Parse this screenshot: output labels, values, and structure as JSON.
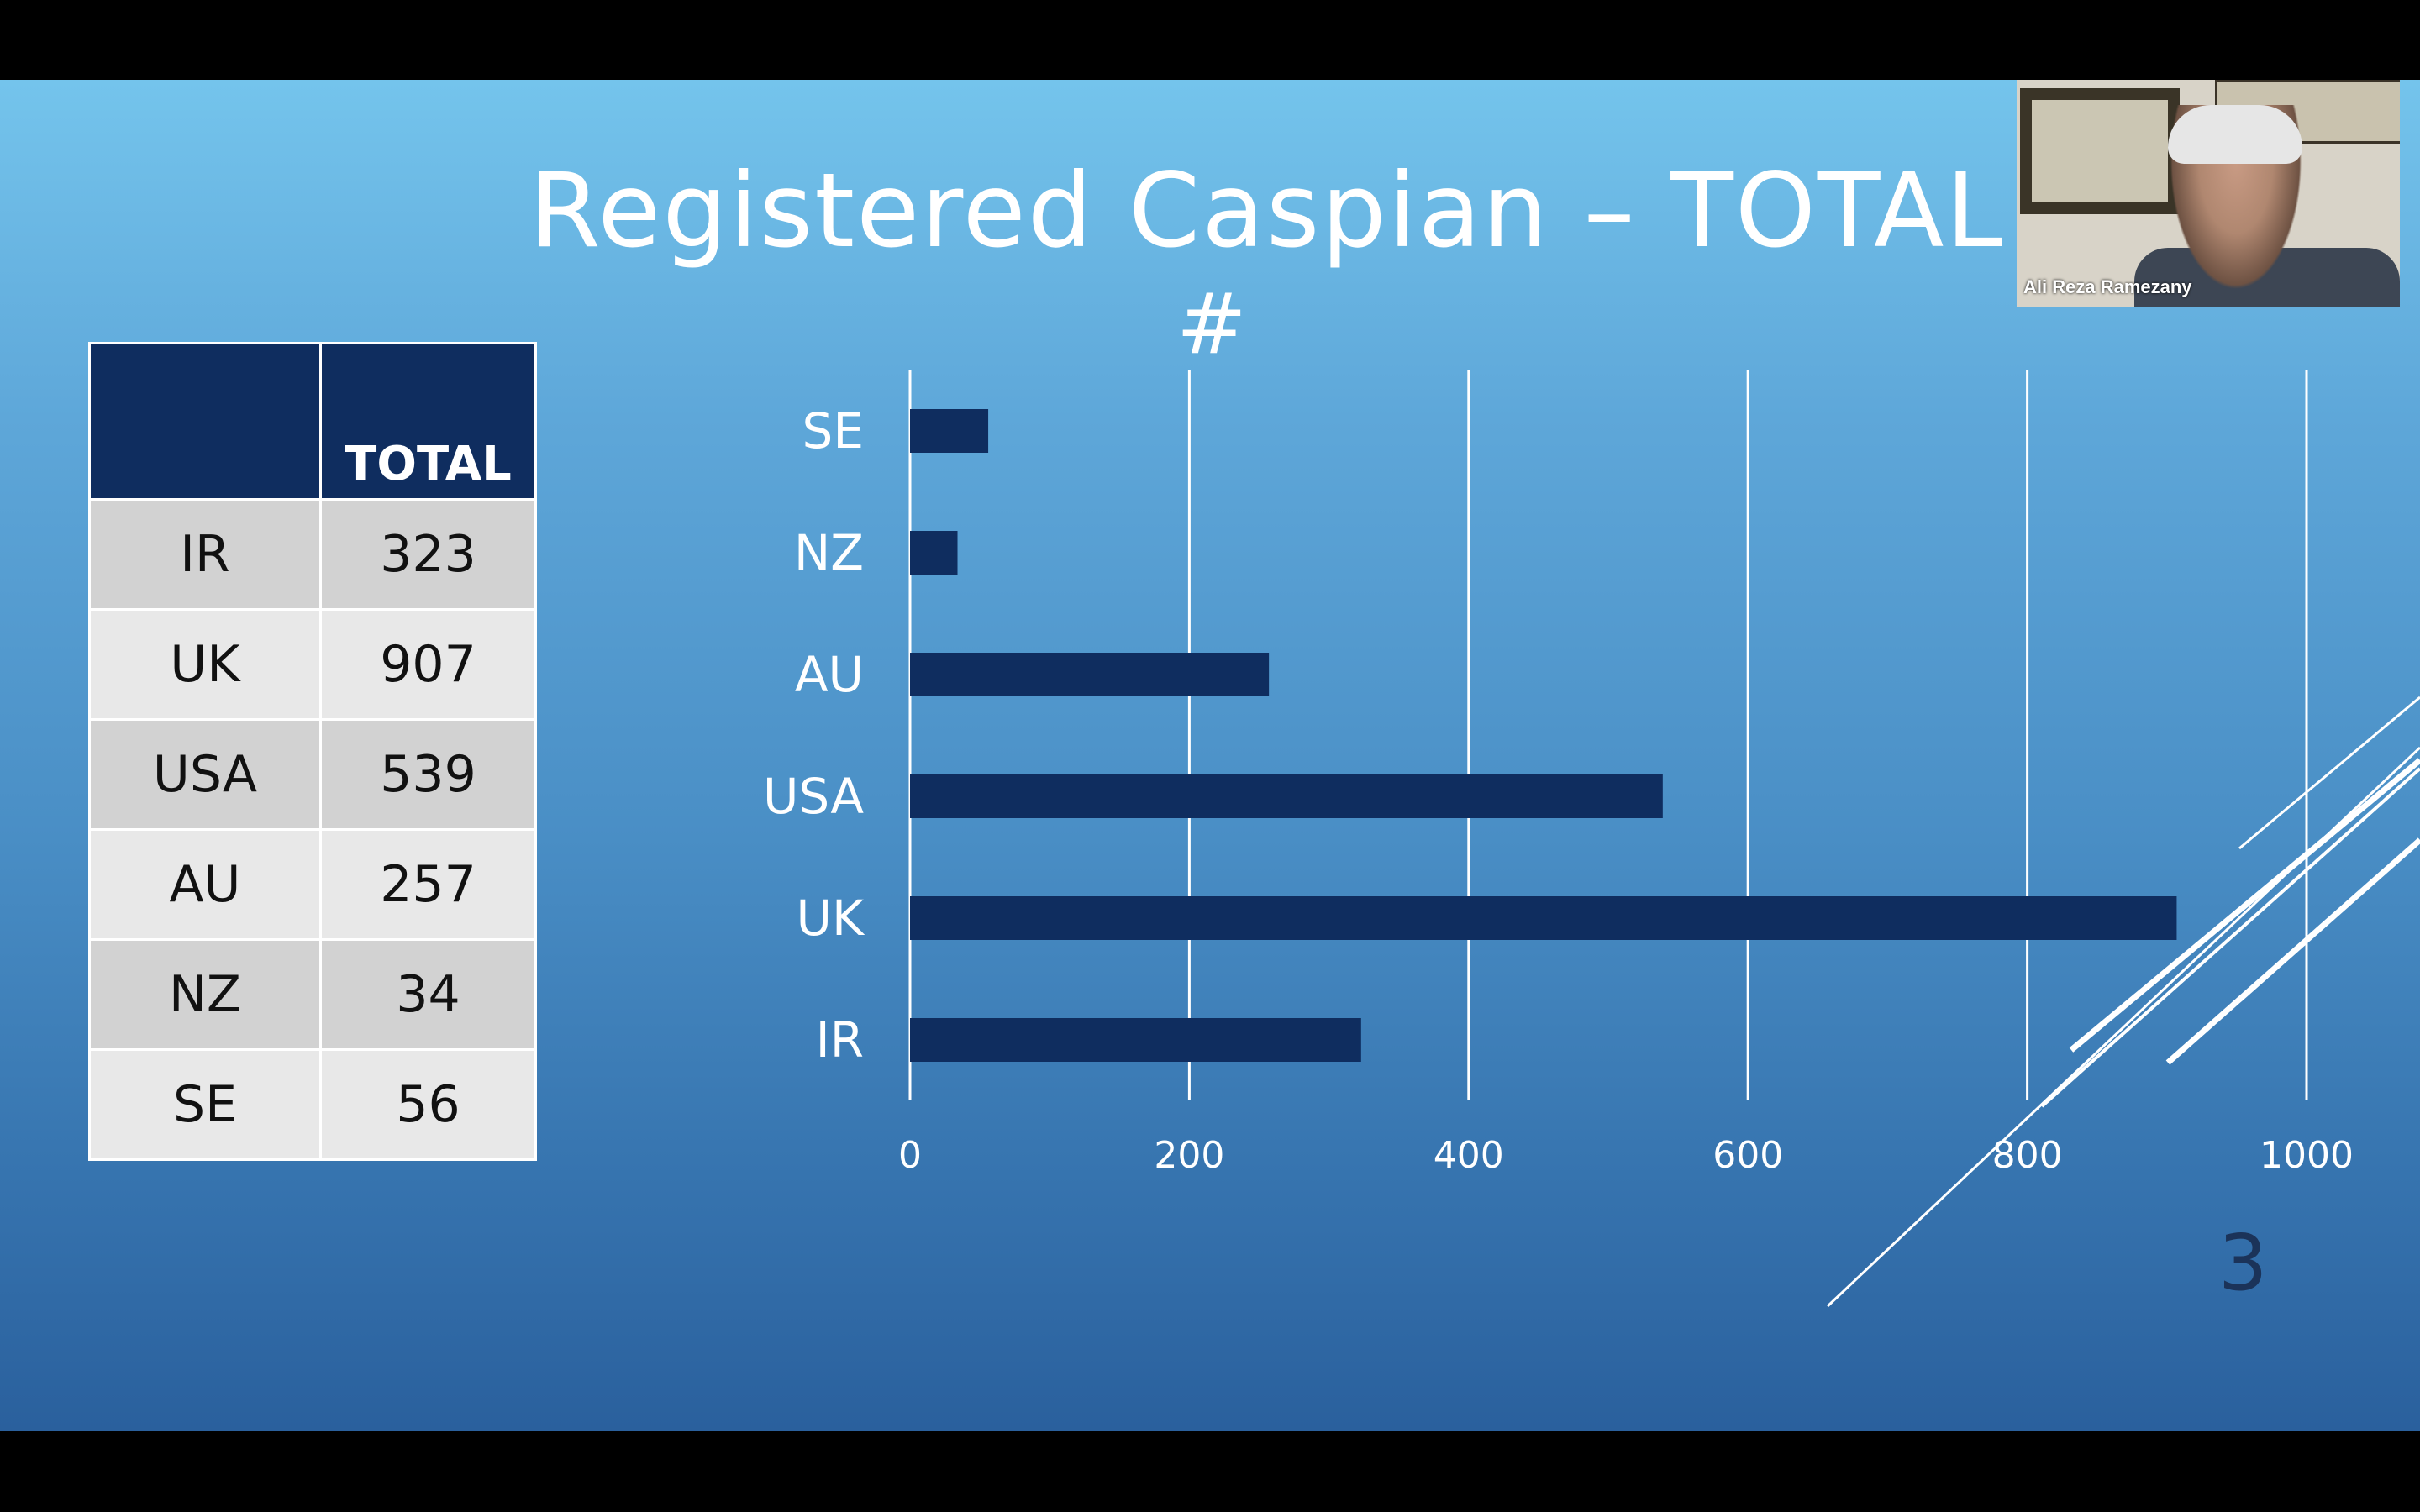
{
  "slide": {
    "title": "Registered Caspian  – TOTAL",
    "subtitle": "#",
    "page_number": "3"
  },
  "table": {
    "header": [
      "",
      "TOTAL"
    ],
    "rows": [
      {
        "country": "IR",
        "total": "323"
      },
      {
        "country": "UK",
        "total": "907"
      },
      {
        "country": "USA",
        "total": "539"
      },
      {
        "country": "AU",
        "total": "257"
      },
      {
        "country": "NZ",
        "total": "34"
      },
      {
        "country": "SE",
        "total": "56"
      }
    ]
  },
  "chart_data": {
    "type": "bar",
    "orientation": "horizontal",
    "categories": [
      "SE",
      "NZ",
      "AU",
      "USA",
      "UK",
      "IR"
    ],
    "values": [
      56,
      34,
      257,
      539,
      907,
      323
    ],
    "xlim": [
      0,
      1000
    ],
    "xticks": [
      "0",
      "200",
      "400",
      "600",
      "800",
      "1000"
    ],
    "grid": true,
    "bar_color": "#0f2d5f"
  },
  "webcam": {
    "participant_name": "Ali Reza Ramezany"
  }
}
